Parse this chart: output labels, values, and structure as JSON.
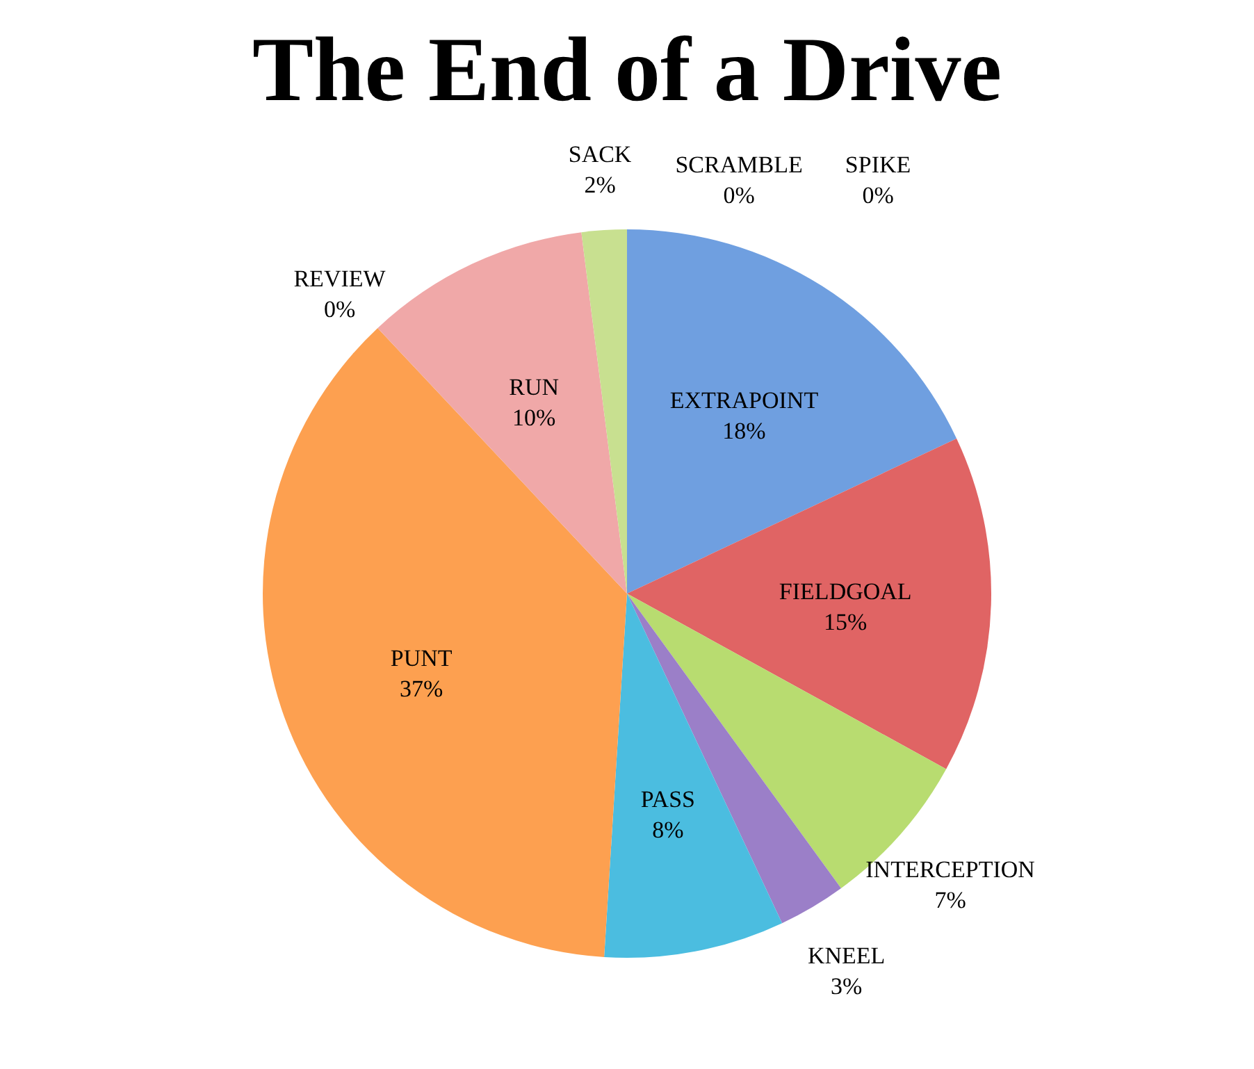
{
  "chart_data": {
    "type": "pie",
    "title": "The End of a Drive",
    "categories": [
      "EXTRAPOINT",
      "FIELDGOAL",
      "INTERCEPTION",
      "KNEEL",
      "PASS",
      "PUNT",
      "REVIEW",
      "RUN",
      "SACK",
      "SCRAMBLE",
      "SPIKE"
    ],
    "values": [
      18,
      15,
      7,
      3,
      8,
      37,
      0,
      10,
      2,
      0,
      0
    ],
    "value_labels": [
      "18%",
      "15%",
      "7%",
      "3%",
      "8%",
      "37%",
      "0%",
      "10%",
      "2%",
      "0%",
      "0%"
    ],
    "colors": [
      "#6f9fe0",
      "#e06464",
      "#b8dc70",
      "#9b7fc8",
      "#4bbde0",
      "#fda050",
      "#8fb0d8",
      "#f0a8a8",
      "#c8e090",
      "#b0a0d0",
      "#7fd0e8"
    ],
    "legend": false
  }
}
